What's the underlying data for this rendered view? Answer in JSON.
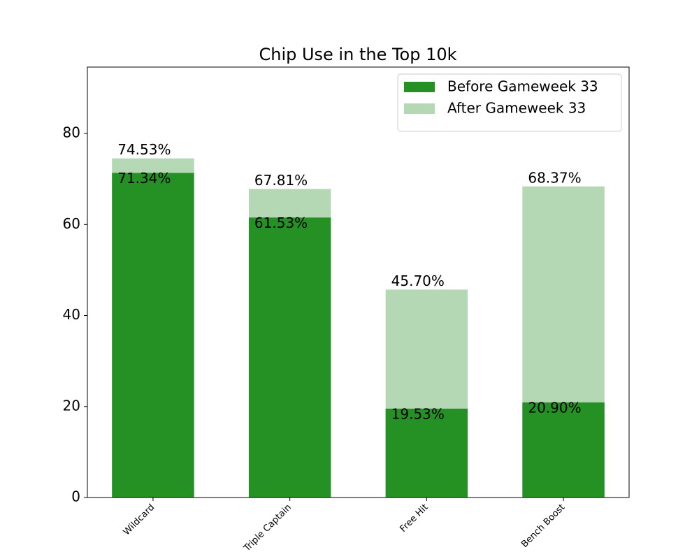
{
  "chart_data": {
    "type": "bar",
    "title": "Chip Use in the Top 10k",
    "categories": [
      "Wildcard",
      "Triple Captain",
      "Free Hit",
      "Bench Boost"
    ],
    "series": [
      {
        "name": "After Gameweek 33",
        "color": "#b3d8b3",
        "values": [
          74.53,
          67.81,
          45.7,
          68.37
        ],
        "value_labels": [
          "74.53%",
          "67.81%",
          "45.70%",
          "68.37%"
        ]
      },
      {
        "name": "Before Gameweek 33",
        "color": "#259125",
        "values": [
          71.34,
          61.53,
          19.53,
          20.9
        ],
        "value_labels": [
          "71.34%",
          "61.53%",
          "19.53%",
          "20.90%"
        ]
      }
    ],
    "ylim": [
      0,
      94.6
    ],
    "yticks": [
      0,
      20,
      40,
      60,
      80
    ],
    "legend": "upper right"
  }
}
